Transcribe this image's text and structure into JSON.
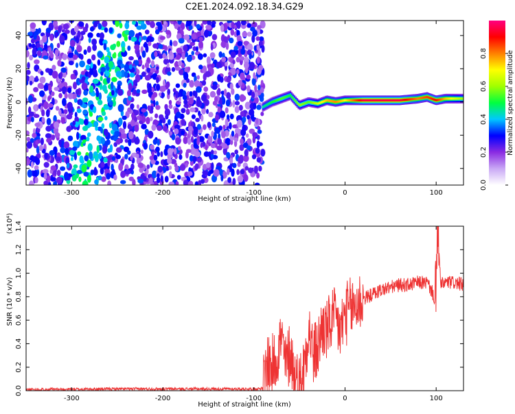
{
  "title": "C2E1.2024.092.18.34.G29",
  "chart_data": [
    {
      "type": "heatmap",
      "xlabel": "Height of straight line (km)",
      "ylabel": "Frequency (Hz)",
      "xlim": [
        -350,
        130
      ],
      "ylim": [
        -50,
        49
      ],
      "xticks": [
        -300,
        -200,
        -100,
        0,
        100
      ],
      "yticks": [
        -40,
        -20,
        0,
        20,
        40
      ],
      "colorbar": {
        "label": "Normalized spectral amplitude",
        "range": [
          0.0,
          1.0
        ],
        "ticks": [
          0.0,
          0.2,
          0.4,
          0.6,
          0.8
        ],
        "colors": [
          "#ffffff",
          "#c9a8f5",
          "#8a2be2",
          "#0000ff",
          "#00c8ff",
          "#00ff40",
          "#a0ff00",
          "#ffff00",
          "#ff8000",
          "#ff0000",
          "#ff0080"
        ]
      },
      "noise_region_x": [
        -350,
        -90
      ],
      "ridge": {
        "x": [
          -90,
          -80,
          -70,
          -60,
          -50,
          -40,
          -30,
          -20,
          -10,
          0,
          20,
          40,
          60,
          80,
          90,
          100,
          110,
          130
        ],
        "y": [
          -3,
          0,
          2,
          4,
          -2,
          0,
          -1,
          1,
          0,
          1,
          1,
          1,
          1,
          2,
          3,
          1,
          2,
          2
        ],
        "amplitude": [
          0.45,
          0.5,
          0.55,
          0.5,
          0.6,
          0.55,
          0.65,
          0.75,
          0.8,
          0.7,
          0.95,
          0.95,
          0.95,
          0.8,
          0.85,
          0.9,
          0.75,
          0.6
        ]
      }
    },
    {
      "type": "line",
      "xlabel": "Height of straight line (km)",
      "ylabel": "SNR (10 * v/v)",
      "scale_label": "(x10⁴)",
      "xlim": [
        -350,
        130
      ],
      "ylim": [
        0,
        1.4
      ],
      "xticks": [
        -300,
        -200,
        -100,
        0,
        100
      ],
      "yticks": [
        0.0,
        0.2,
        0.4,
        0.6,
        0.8,
        1.0,
        1.2,
        1.4
      ],
      "series": [
        {
          "color": "#ee3333",
          "x": [
            -350,
            -250,
            -100,
            -90,
            -85,
            -80,
            -75,
            -70,
            -65,
            -60,
            -55,
            -50,
            -45,
            -40,
            -35,
            -30,
            -25,
            -20,
            -15,
            -10,
            -5,
            0,
            10,
            20,
            30,
            40,
            50,
            60,
            70,
            80,
            90,
            95,
            100,
            102,
            105,
            110,
            120,
            130
          ],
          "y": [
            0.01,
            0.015,
            0.015,
            0.02,
            0.25,
            0.2,
            0.3,
            0.45,
            0.2,
            0.35,
            0.1,
            0.05,
            0.2,
            0.55,
            0.3,
            0.35,
            0.55,
            0.5,
            0.6,
            0.6,
            0.5,
            0.65,
            0.72,
            0.78,
            0.82,
            0.86,
            0.88,
            0.9,
            0.9,
            0.92,
            0.92,
            0.85,
            0.75,
            1.3,
            0.9,
            0.92,
            0.92,
            0.9
          ]
        }
      ]
    }
  ]
}
